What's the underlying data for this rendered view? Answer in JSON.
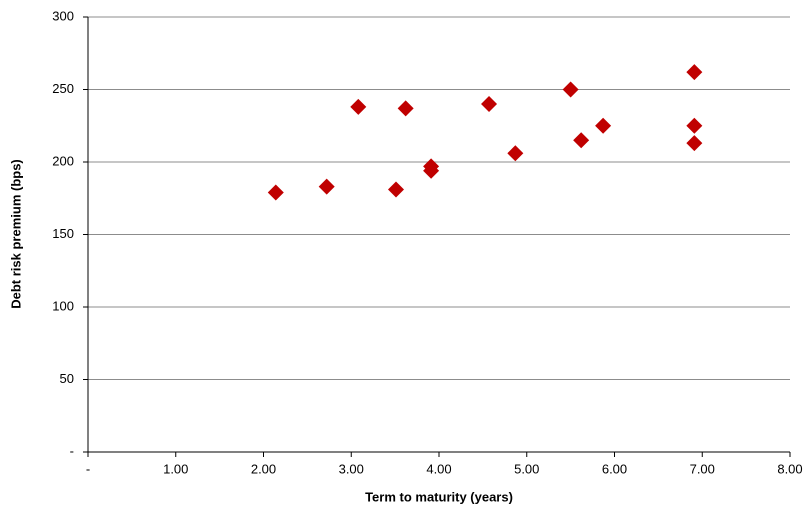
{
  "chart_data": {
    "type": "scatter",
    "x_label": "Term to maturity (years)",
    "y_label": "Debt risk premium (bps)",
    "x": [
      2.14,
      2.72,
      3.08,
      3.51,
      3.62,
      3.91,
      3.91,
      4.57,
      4.87,
      5.5,
      5.62,
      5.87,
      6.91,
      6.91,
      6.91
    ],
    "values": [
      179,
      183,
      238,
      181,
      237,
      197,
      194,
      240,
      206,
      250,
      215,
      225,
      262,
      225,
      213
    ],
    "color": "#c00000",
    "xlim": [
      0,
      8
    ],
    "xticks": [
      {
        "value": 0,
        "label": "-"
      },
      {
        "value": 1,
        "label": "1.00"
      },
      {
        "value": 2,
        "label": "2.00"
      },
      {
        "value": 3,
        "label": "3.00"
      },
      {
        "value": 4,
        "label": "4.00"
      },
      {
        "value": 5,
        "label": "5.00"
      },
      {
        "value": 6,
        "label": "6.00"
      },
      {
        "value": 7,
        "label": "7.00"
      },
      {
        "value": 8,
        "label": "8.00"
      }
    ],
    "ylim": [
      0,
      300
    ],
    "yticks": [
      {
        "value": 0,
        "label": "-"
      },
      50,
      100,
      150,
      200,
      250,
      300
    ],
    "grid": true
  }
}
